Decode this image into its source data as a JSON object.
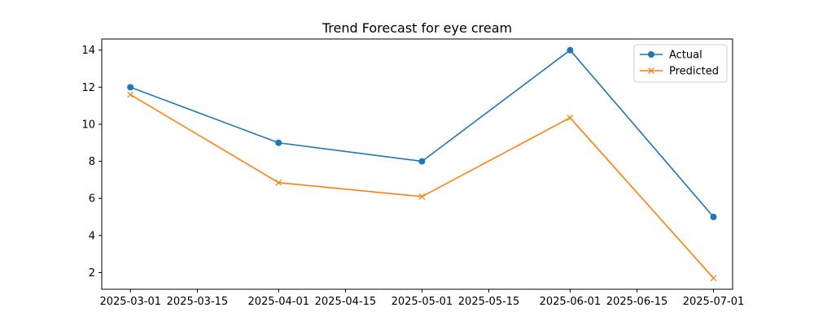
{
  "chart_data": {
    "type": "line",
    "title": "Trend Forecast for eye cream",
    "xlabel": "",
    "ylabel": "",
    "x": [
      "2025-03-01",
      "2025-04-01",
      "2025-05-01",
      "2025-06-01",
      "2025-07-01"
    ],
    "x_ticks": [
      "2025-03-01",
      "2025-03-15",
      "2025-04-01",
      "2025-04-15",
      "2025-05-01",
      "2025-05-15",
      "2025-06-01",
      "2025-06-15",
      "2025-07-01"
    ],
    "y_ticks": [
      2,
      4,
      6,
      8,
      10,
      12,
      14
    ],
    "xlim": [
      "2025-02-23",
      "2025-07-05"
    ],
    "ylim": [
      1.1,
      14.6
    ],
    "grid": false,
    "legend": "top-right",
    "series": [
      {
        "name": "Actual",
        "color": "#1f77b4",
        "marker": "circle",
        "values": [
          12,
          9,
          8,
          14,
          5
        ]
      },
      {
        "name": "Predicted",
        "color": "#ff7f0e",
        "marker": "x",
        "values": [
          11.6,
          6.85,
          6.1,
          10.35,
          1.7
        ]
      }
    ]
  }
}
